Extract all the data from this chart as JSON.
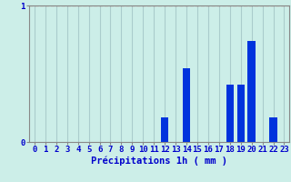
{
  "hours": [
    0,
    1,
    2,
    3,
    4,
    5,
    6,
    7,
    8,
    9,
    10,
    11,
    12,
    13,
    14,
    15,
    16,
    17,
    18,
    19,
    20,
    21,
    22,
    23
  ],
  "values": [
    0,
    0,
    0,
    0,
    0,
    0,
    0,
    0,
    0,
    0,
    0,
    0,
    0.18,
    0,
    0.54,
    0,
    0,
    0,
    0.42,
    0.42,
    0.74,
    0,
    0.18,
    0
  ],
  "bar_color": "#0033dd",
  "background_color": "#cceee8",
  "grid_color": "#aacccc",
  "spine_color": "#888888",
  "text_color": "#0000cc",
  "xlabel": "Précipitations 1h ( mm )",
  "ylim": [
    0,
    1.0
  ],
  "yticks": [
    0,
    1
  ],
  "xlim": [
    -0.5,
    23.5
  ],
  "xlabel_fontsize": 7.5,
  "tick_fontsize": 6.5,
  "redline_y": 1.0
}
